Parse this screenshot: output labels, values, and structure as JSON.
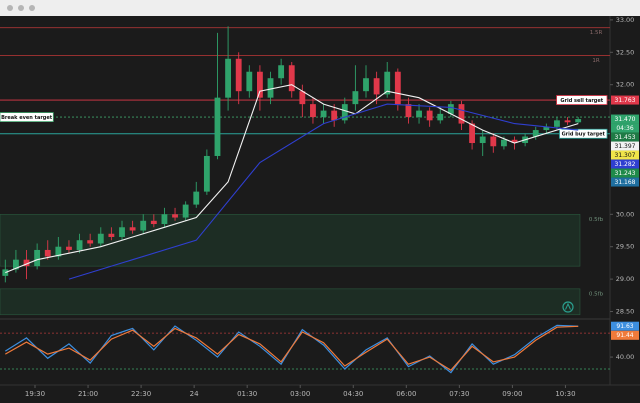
{
  "chart_data": [
    {
      "type": "candlestick",
      "x": [
        0,
        1,
        2,
        3,
        4,
        5,
        6,
        7,
        8,
        9,
        10,
        11,
        12,
        13,
        14,
        15,
        16,
        17,
        18,
        19,
        20,
        21,
        22,
        23,
        24,
        25,
        26,
        27,
        28,
        29,
        30,
        31,
        32,
        33,
        34,
        35,
        36,
        37,
        38,
        39,
        40,
        41,
        42,
        43,
        44,
        45,
        46,
        47,
        48,
        49,
        50,
        51,
        52,
        53,
        54
      ],
      "open": [
        29.05,
        29.15,
        29.3,
        29.2,
        29.45,
        29.35,
        29.5,
        29.45,
        29.6,
        29.55,
        29.7,
        29.65,
        29.8,
        29.75,
        29.9,
        29.85,
        30.0,
        29.95,
        30.15,
        30.35,
        30.9,
        31.8,
        32.4,
        31.9,
        32.2,
        31.8,
        32.1,
        32.3,
        31.9,
        31.7,
        31.5,
        31.6,
        31.45,
        31.7,
        31.9,
        32.1,
        31.85,
        32.2,
        31.7,
        31.5,
        31.6,
        31.45,
        31.55,
        31.7,
        31.4,
        31.1,
        31.2,
        31.05,
        31.15,
        31.1,
        31.2,
        31.3,
        31.35,
        31.45,
        31.42
      ],
      "high": [
        29.3,
        29.45,
        29.45,
        29.55,
        29.6,
        29.65,
        29.6,
        29.7,
        29.7,
        29.8,
        29.8,
        29.9,
        29.9,
        30.0,
        30.0,
        30.1,
        30.1,
        30.2,
        30.5,
        31.0,
        32.8,
        32.9,
        32.5,
        32.3,
        32.3,
        32.2,
        32.4,
        32.35,
        32.0,
        31.8,
        31.7,
        31.7,
        31.8,
        32.3,
        32.3,
        32.2,
        32.35,
        32.25,
        31.8,
        31.7,
        31.65,
        31.65,
        31.75,
        31.75,
        31.45,
        31.3,
        31.25,
        31.2,
        31.2,
        31.25,
        31.35,
        31.4,
        31.5,
        31.5,
        31.5
      ],
      "low": [
        28.95,
        29.1,
        29.0,
        29.15,
        29.3,
        29.3,
        29.4,
        29.4,
        29.5,
        29.5,
        29.6,
        29.6,
        29.7,
        29.7,
        29.8,
        29.8,
        29.9,
        29.9,
        30.1,
        30.3,
        30.85,
        31.6,
        31.7,
        31.8,
        31.6,
        31.7,
        32.0,
        31.8,
        31.5,
        31.4,
        31.4,
        31.35,
        31.4,
        31.6,
        31.8,
        31.7,
        31.8,
        31.6,
        31.4,
        31.4,
        31.35,
        31.4,
        31.5,
        31.3,
        31.0,
        30.9,
        30.95,
        31.0,
        31.0,
        31.05,
        31.15,
        31.25,
        31.3,
        31.38,
        31.4
      ],
      "close": [
        29.15,
        29.3,
        29.2,
        29.45,
        29.35,
        29.5,
        29.45,
        29.6,
        29.55,
        29.7,
        29.65,
        29.8,
        29.75,
        29.9,
        29.85,
        30.0,
        29.95,
        30.15,
        30.35,
        30.9,
        31.8,
        32.4,
        31.9,
        32.2,
        31.8,
        32.1,
        32.3,
        31.9,
        31.7,
        31.5,
        31.6,
        31.45,
        31.7,
        31.9,
        32.1,
        31.85,
        32.2,
        31.7,
        31.5,
        31.6,
        31.45,
        31.55,
        31.7,
        31.4,
        31.1,
        31.2,
        31.05,
        31.15,
        31.1,
        31.2,
        31.3,
        31.35,
        31.45,
        31.42,
        31.47
      ],
      "up_color": "#2fa36b",
      "down_color": "#e0384a",
      "xlim": [
        -0.5,
        57
      ],
      "xticks": [
        {
          "value": 2.8,
          "label": "19:30"
        },
        {
          "value": 7.8,
          "label": "21:00"
        },
        {
          "value": 12.8,
          "label": "22:30"
        },
        {
          "value": 17.8,
          "label": "24"
        },
        {
          "value": 22.8,
          "label": "01:30"
        },
        {
          "value": 27.8,
          "label": "03:00"
        },
        {
          "value": 32.8,
          "label": "04:30"
        },
        {
          "value": 37.8,
          "label": "06:00"
        },
        {
          "value": 42.8,
          "label": "07:30"
        },
        {
          "value": 47.8,
          "label": "09:00"
        },
        {
          "value": 52.8,
          "label": "10:30"
        }
      ],
      "ylim": [
        28.4,
        33.06
      ],
      "yticks": [
        {
          "value": 33,
          "label": "33.00"
        },
        {
          "value": 32.5,
          "label": "32.50"
        },
        {
          "value": 32,
          "label": "32.00"
        },
        {
          "value": 30,
          "label": "30.00"
        },
        {
          "value": 29.5,
          "label": "29.50"
        },
        {
          "value": 29,
          "label": "29.00"
        },
        {
          "value": 28.5,
          "label": "28.50"
        }
      ],
      "series": [
        {
          "color": "#f2f2f2",
          "x": [
            0,
            3,
            6,
            9,
            12,
            15,
            18,
            21,
            24,
            27,
            30,
            33,
            36,
            39,
            42,
            45,
            48,
            51,
            54
          ],
          "values": [
            29.1,
            29.3,
            29.4,
            29.5,
            29.65,
            29.8,
            29.95,
            30.5,
            31.9,
            32.0,
            31.7,
            31.55,
            31.9,
            31.8,
            31.55,
            31.3,
            31.1,
            31.25,
            31.4
          ]
        },
        {
          "color": "#2f3fd0",
          "x": [
            6,
            12,
            18,
            24,
            30,
            36,
            42,
            48,
            54
          ],
          "values": [
            29.0,
            29.3,
            29.6,
            30.8,
            31.4,
            31.7,
            31.65,
            31.4,
            31.3
          ]
        }
      ],
      "levels": [
        {
          "value": 32.88,
          "label": "1.5R",
          "color": "#a83434",
          "kind": "tag"
        },
        {
          "value": 32.45,
          "label": "1R",
          "color": "#a83434",
          "kind": "tag"
        },
        {
          "value": 31.763,
          "label": "Grid sell target",
          "color": "#e0384a",
          "kind": "box-right"
        },
        {
          "value": 31.5,
          "label": "Break even target",
          "color": "#3fa36b",
          "kind": "box-left",
          "dashed": true
        },
        {
          "value": 31.243,
          "label": "Grid buy target",
          "color": "#2aa39a",
          "kind": "box-right"
        }
      ],
      "zones": [
        {
          "from": 29.2,
          "to": 30.0,
          "label": "0.5fb"
        },
        {
          "from": 28.45,
          "to": 28.85,
          "label": "0.5fb"
        }
      ],
      "price_labels": [
        {
          "value": 31.763,
          "label": "31.763",
          "color": "#e0384a",
          "text_color": "#ffffff"
        },
        {
          "value": 31.47,
          "label": "31.470",
          "color": "#2fa36b",
          "text_color": "#ffffff"
        },
        {
          "value": 31.453,
          "label": "31.453",
          "color": "#1f7a45",
          "text_color": "#ffffff"
        },
        {
          "value": 31.397,
          "label": "31.397",
          "color": "#f2f2f2",
          "text_color": "#111111"
        },
        {
          "value": 31.307,
          "label": "31.307",
          "color": "#f0e44a",
          "text_color": "#111111"
        },
        {
          "value": 31.282,
          "label": "31.282",
          "color": "#2f3fd0",
          "text_color": "#ffffff"
        },
        {
          "value": 31.243,
          "label": "31.243",
          "color": "#1f8a4a",
          "text_color": "#ffffff"
        },
        {
          "value": 31.168,
          "label": "31.168",
          "color": "#1f6fa0",
          "text_color": "#ffffff"
        }
      ],
      "countdown": "04:36"
    },
    {
      "type": "line",
      "x": [
        0,
        2,
        4,
        6,
        8,
        10,
        12,
        14,
        16,
        18,
        20,
        22,
        24,
        26,
        28,
        30,
        32,
        34,
        36,
        38,
        40,
        42,
        44,
        46,
        48,
        50,
        52,
        54
      ],
      "xlim": [
        -0.5,
        57
      ],
      "ylim": [
        5,
        102
      ],
      "yticks": [
        {
          "value": 40,
          "label": "40.00"
        }
      ],
      "levels": [
        {
          "value": 80,
          "color": "#b23a3a"
        },
        {
          "value": 20,
          "color": "#3fa36b"
        }
      ],
      "series": [
        {
          "color": "#3d8fe0",
          "values": [
            50,
            72,
            38,
            62,
            30,
            76,
            88,
            52,
            92,
            68,
            40,
            82,
            58,
            28,
            86,
            60,
            20,
            52,
            72,
            24,
            42,
            14,
            62,
            28,
            44,
            72,
            93,
            91.63
          ]
        },
        {
          "color": "#f07a3a",
          "values": [
            45,
            65,
            45,
            55,
            35,
            70,
            85,
            58,
            88,
            72,
            45,
            78,
            62,
            32,
            82,
            64,
            25,
            48,
            70,
            28,
            40,
            18,
            58,
            32,
            40,
            68,
            90,
            91.44
          ]
        }
      ]
    }
  ]
}
